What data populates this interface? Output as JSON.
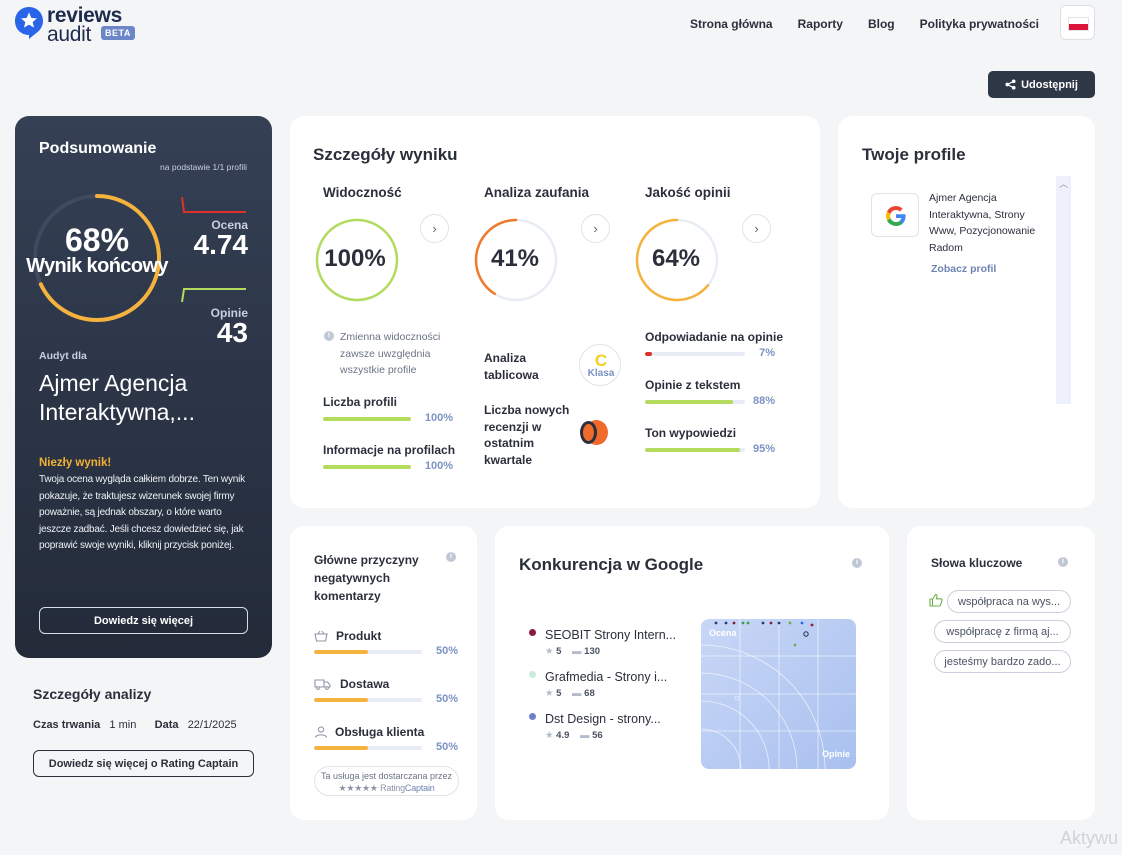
{
  "brand": {
    "name_top": "reviews",
    "name_bottom": "audit",
    "badge": "BETA"
  },
  "nav": [
    "Strona główna",
    "Raporty",
    "Blog",
    "Polityka prywatności"
  ],
  "share_label": "Udostępnij",
  "summary": {
    "title": "Podsumowanie",
    "subtitle": "na podstawie 1/1 profili",
    "score_pct": "68%",
    "score_label": "Wynik końcowy",
    "score_value": 0.68,
    "rating_label": "Ocena",
    "rating_value": "4.74",
    "opinions_label": "Opinie",
    "opinions_value": "43",
    "audit_for": "Audyt dla",
    "company": "Ajmer Agencja Interaktywna,...",
    "verdict": "Niezły wynik!",
    "verdict_text": "Twoja ocena wygląda całkiem dobrze. Ten wynik pokazuje, że traktujesz wizerunek swojej firmy poważnie, są jednak obszary, o które warto jeszcze zadbać. Jeśli chcesz dowiedzieć się, jak poprawić swoje wyniki, kliknij przycisk poniżej.",
    "button": "Dowiedz się więcej"
  },
  "analysis": {
    "title": "Szczegóły analizy",
    "duration_label": "Czas trwania",
    "duration_value": "1 min",
    "date_label": "Data",
    "date_value": "22/1/2025",
    "button": "Dowiedz się więcej o Rating Captain"
  },
  "result": {
    "title": "Szczegóły wyniku",
    "visibility": {
      "title": "Widoczność",
      "value": "100%",
      "level": 1.0,
      "note": "Zmienna widoczności zawsze uwzględnia wszystkie profile",
      "metrics": [
        {
          "label": "Liczba profili",
          "pct": "100%",
          "level": 1.0
        },
        {
          "label": "Informacje na profilach",
          "pct": "100%",
          "level": 1.0
        }
      ]
    },
    "trust": {
      "title": "Analiza zaufania",
      "value": "41%",
      "level": 0.41,
      "table_label": "Analiza tablicowa",
      "grade": "C",
      "grade_label": "Klasa",
      "new_reviews_label": "Liczba nowych recenzji w ostatnim kwartale",
      "new_reviews_value": "0"
    },
    "quality": {
      "title": "Jakość opinii",
      "value": "64%",
      "level": 0.64,
      "metrics": [
        {
          "label": "Odpowiadanie na opinie",
          "pct": "7%",
          "level": 0.07
        },
        {
          "label": "Opinie z tekstem",
          "pct": "88%",
          "level": 0.88
        },
        {
          "label": "Ton wypowiedzi",
          "pct": "95%",
          "level": 0.95
        }
      ]
    },
    "colors": {
      "green": "#b3dc5e",
      "orange": "#f07a2a",
      "amber": "#f5b33d",
      "red": "#e0302a",
      "track": "#e8edf5"
    }
  },
  "profiles": {
    "title": "Twoje profile",
    "name": "Ajmer Agencja Interaktywna, Strony Www, Pozycjonowanie Radom",
    "link": "Zobacz profil",
    "icon": "google-icon"
  },
  "negative": {
    "title": "Główne przyczyny negatywnych komentarzy",
    "items": [
      {
        "label": "Produkt",
        "pct": "50%",
        "level": 0.5,
        "icon": "basket-icon"
      },
      {
        "label": "Dostawa",
        "pct": "50%",
        "level": 0.5,
        "icon": "truck-icon"
      },
      {
        "label": "Obsługa klienta",
        "pct": "50%",
        "level": 0.5,
        "icon": "user-icon"
      }
    ],
    "provided_line1": "Ta usługa jest dostarczana przez",
    "provided_brand": "★★★★★ Rating",
    "provided_brand_bold": "Captain"
  },
  "competition": {
    "title": "Konkurencja w Google",
    "items": [
      {
        "name": "SEOBIT Strony Intern...",
        "rating": "5",
        "reviews": "130",
        "color": "#8b1a3b"
      },
      {
        "name": "Grafmedia - Strony i...",
        "rating": "5",
        "reviews": "68",
        "color": "#c8ecd9"
      },
      {
        "name": "Dst Design - strony...",
        "rating": "4.9",
        "reviews": "56",
        "color": "#6f7fc9"
      }
    ],
    "map_y_label": "Ocena",
    "map_x_label": "Opinie"
  },
  "keywords": {
    "title": "Słowa kluczowe",
    "chips": [
      "współpraca na wys...",
      "współpracę z firmą aj...",
      "jesteśmy bardzo zado..."
    ]
  },
  "watermark": "Aktywu"
}
